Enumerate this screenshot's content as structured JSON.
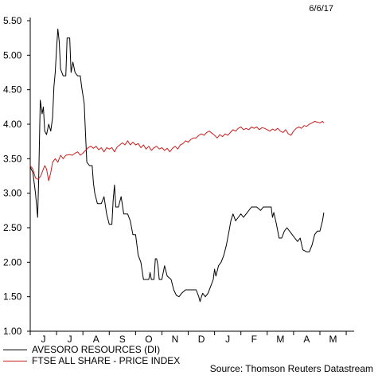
{
  "date_label": "6/6/17",
  "source": "Source: Thomson Reuters Datastream",
  "chart_data": {
    "type": "line",
    "title": "",
    "xlabel": "",
    "ylabel": "",
    "ylim": [
      1.0,
      5.5
    ],
    "yticks": [
      "1.00",
      "1.50",
      "2.00",
      "2.50",
      "3.00",
      "3.50",
      "4.00",
      "4.50",
      "5.00",
      "5.50"
    ],
    "xticks": [
      "J",
      "J",
      "A",
      "S",
      "O",
      "N",
      "D",
      "J",
      "F",
      "M",
      "A",
      "M"
    ],
    "xlim": [
      0,
      12.3
    ],
    "grid": false,
    "legend": "bottom-left",
    "series": [
      {
        "name": "AVESORO RESOURCES (DI)",
        "color": "#000000",
        "points": [
          [
            0.0,
            3.38
          ],
          [
            0.1,
            3.3
          ],
          [
            0.2,
            3.0
          ],
          [
            0.28,
            2.65
          ],
          [
            0.32,
            3.2
          ],
          [
            0.38,
            4.35
          ],
          [
            0.45,
            4.15
          ],
          [
            0.5,
            4.25
          ],
          [
            0.55,
            3.9
          ],
          [
            0.62,
            3.85
          ],
          [
            0.7,
            4.0
          ],
          [
            0.78,
            3.9
          ],
          [
            0.85,
            4.1
          ],
          [
            0.9,
            4.55
          ],
          [
            0.95,
            4.75
          ],
          [
            1.0,
            5.1
          ],
          [
            1.05,
            5.38
          ],
          [
            1.1,
            5.2
          ],
          [
            1.15,
            4.8
          ],
          [
            1.25,
            4.7
          ],
          [
            1.35,
            4.7
          ],
          [
            1.4,
            5.25
          ],
          [
            1.5,
            5.25
          ],
          [
            1.55,
            4.75
          ],
          [
            1.62,
            4.9
          ],
          [
            1.7,
            4.75
          ],
          [
            1.8,
            4.7
          ],
          [
            1.9,
            4.7
          ],
          [
            1.95,
            4.55
          ],
          [
            2.05,
            4.3
          ],
          [
            2.1,
            3.85
          ],
          [
            2.15,
            3.45
          ],
          [
            2.25,
            3.4
          ],
          [
            2.35,
            3.4
          ],
          [
            2.4,
            3.15
          ],
          [
            2.45,
            3.0
          ],
          [
            2.55,
            2.85
          ],
          [
            2.7,
            2.85
          ],
          [
            2.8,
            2.95
          ],
          [
            2.9,
            2.7
          ],
          [
            3.0,
            2.55
          ],
          [
            3.1,
            2.55
          ],
          [
            3.15,
            2.9
          ],
          [
            3.2,
            3.12
          ],
          [
            3.25,
            2.8
          ],
          [
            3.35,
            2.8
          ],
          [
            3.45,
            2.95
          ],
          [
            3.55,
            2.7
          ],
          [
            3.7,
            2.7
          ],
          [
            3.8,
            2.6
          ],
          [
            3.9,
            2.4
          ],
          [
            4.0,
            2.4
          ],
          [
            4.1,
            2.1
          ],
          [
            4.2,
            2.0
          ],
          [
            4.3,
            1.75
          ],
          [
            4.5,
            1.75
          ],
          [
            4.55,
            1.85
          ],
          [
            4.6,
            1.75
          ],
          [
            4.7,
            1.75
          ],
          [
            4.75,
            2.05
          ],
          [
            4.8,
            2.05
          ],
          [
            4.85,
            1.95
          ],
          [
            4.9,
            1.75
          ],
          [
            5.0,
            1.75
          ],
          [
            5.1,
            1.95
          ],
          [
            5.2,
            1.8
          ],
          [
            5.35,
            1.75
          ],
          [
            5.45,
            1.6
          ],
          [
            5.55,
            1.52
          ],
          [
            5.65,
            1.5
          ],
          [
            5.75,
            1.55
          ],
          [
            5.9,
            1.6
          ],
          [
            6.3,
            1.6
          ],
          [
            6.4,
            1.5
          ],
          [
            6.45,
            1.43
          ],
          [
            6.5,
            1.5
          ],
          [
            6.55,
            1.55
          ],
          [
            6.65,
            1.5
          ],
          [
            6.75,
            1.55
          ],
          [
            6.85,
            1.65
          ],
          [
            6.95,
            1.75
          ],
          [
            7.0,
            1.9
          ],
          [
            7.05,
            1.8
          ],
          [
            7.15,
            1.95
          ],
          [
            7.25,
            2.0
          ],
          [
            7.35,
            2.1
          ],
          [
            7.45,
            2.25
          ],
          [
            7.55,
            2.45
          ],
          [
            7.62,
            2.6
          ],
          [
            7.7,
            2.7
          ],
          [
            7.8,
            2.6
          ],
          [
            7.9,
            2.65
          ],
          [
            8.0,
            2.7
          ],
          [
            8.1,
            2.65
          ],
          [
            8.2,
            2.7
          ],
          [
            8.4,
            2.8
          ],
          [
            8.6,
            2.8
          ],
          [
            8.75,
            2.75
          ],
          [
            8.85,
            2.8
          ],
          [
            9.15,
            2.8
          ],
          [
            9.2,
            2.65
          ],
          [
            9.25,
            2.72
          ],
          [
            9.35,
            2.55
          ],
          [
            9.45,
            2.35
          ],
          [
            9.55,
            2.35
          ],
          [
            9.65,
            2.45
          ],
          [
            9.75,
            2.5
          ],
          [
            9.85,
            2.45
          ],
          [
            9.95,
            2.4
          ],
          [
            10.05,
            2.35
          ],
          [
            10.15,
            2.3
          ],
          [
            10.25,
            2.35
          ],
          [
            10.35,
            2.18
          ],
          [
            10.5,
            2.15
          ],
          [
            10.6,
            2.15
          ],
          [
            10.7,
            2.25
          ],
          [
            10.8,
            2.4
          ],
          [
            10.9,
            2.45
          ],
          [
            11.0,
            2.45
          ],
          [
            11.1,
            2.6
          ],
          [
            11.15,
            2.72
          ]
        ]
      },
      {
        "name": "FTSE ALL SHARE - PRICE INDEX",
        "color": "#cc1f1f",
        "points": [
          [
            0.0,
            3.4
          ],
          [
            0.1,
            3.35
          ],
          [
            0.2,
            3.22
          ],
          [
            0.3,
            3.2
          ],
          [
            0.4,
            3.25
          ],
          [
            0.5,
            3.35
          ],
          [
            0.55,
            3.4
          ],
          [
            0.62,
            3.35
          ],
          [
            0.7,
            3.18
          ],
          [
            0.78,
            3.3
          ],
          [
            0.85,
            3.45
          ],
          [
            0.95,
            3.5
          ],
          [
            1.05,
            3.45
          ],
          [
            1.15,
            3.55
          ],
          [
            1.25,
            3.5
          ],
          [
            1.35,
            3.55
          ],
          [
            1.5,
            3.56
          ],
          [
            1.6,
            3.55
          ],
          [
            1.7,
            3.58
          ],
          [
            1.8,
            3.6
          ],
          [
            1.9,
            3.55
          ],
          [
            2.0,
            3.58
          ],
          [
            2.1,
            3.62
          ],
          [
            2.2,
            3.66
          ],
          [
            2.3,
            3.68
          ],
          [
            2.4,
            3.65
          ],
          [
            2.5,
            3.68
          ],
          [
            2.6,
            3.63
          ],
          [
            2.7,
            3.66
          ],
          [
            2.8,
            3.6
          ],
          [
            2.9,
            3.66
          ],
          [
            3.0,
            3.64
          ],
          [
            3.1,
            3.66
          ],
          [
            3.2,
            3.6
          ],
          [
            3.3,
            3.67
          ],
          [
            3.4,
            3.7
          ],
          [
            3.5,
            3.73
          ],
          [
            3.6,
            3.7
          ],
          [
            3.7,
            3.76
          ],
          [
            3.8,
            3.7
          ],
          [
            3.9,
            3.74
          ],
          [
            4.0,
            3.7
          ],
          [
            4.1,
            3.72
          ],
          [
            4.2,
            3.66
          ],
          [
            4.3,
            3.7
          ],
          [
            4.4,
            3.64
          ],
          [
            4.5,
            3.68
          ],
          [
            4.6,
            3.62
          ],
          [
            4.7,
            3.66
          ],
          [
            4.8,
            3.68
          ],
          [
            4.9,
            3.64
          ],
          [
            5.0,
            3.66
          ],
          [
            5.1,
            3.62
          ],
          [
            5.2,
            3.65
          ],
          [
            5.3,
            3.6
          ],
          [
            5.4,
            3.65
          ],
          [
            5.5,
            3.68
          ],
          [
            5.6,
            3.64
          ],
          [
            5.7,
            3.7
          ],
          [
            5.8,
            3.72
          ],
          [
            5.9,
            3.76
          ],
          [
            6.0,
            3.74
          ],
          [
            6.1,
            3.78
          ],
          [
            6.2,
            3.8
          ],
          [
            6.3,
            3.8
          ],
          [
            6.4,
            3.84
          ],
          [
            6.5,
            3.86
          ],
          [
            6.6,
            3.84
          ],
          [
            6.7,
            3.88
          ],
          [
            6.8,
            3.9
          ],
          [
            6.9,
            3.87
          ],
          [
            7.0,
            3.84
          ],
          [
            7.1,
            3.8
          ],
          [
            7.2,
            3.85
          ],
          [
            7.3,
            3.82
          ],
          [
            7.4,
            3.86
          ],
          [
            7.5,
            3.84
          ],
          [
            7.6,
            3.88
          ],
          [
            7.7,
            3.92
          ],
          [
            7.8,
            3.9
          ],
          [
            7.9,
            3.94
          ],
          [
            8.0,
            3.96
          ],
          [
            8.1,
            3.92
          ],
          [
            8.2,
            3.94
          ],
          [
            8.3,
            3.92
          ],
          [
            8.4,
            3.96
          ],
          [
            8.5,
            3.94
          ],
          [
            8.6,
            3.96
          ],
          [
            8.7,
            3.92
          ],
          [
            8.8,
            3.95
          ],
          [
            8.9,
            3.94
          ],
          [
            9.0,
            3.92
          ],
          [
            9.1,
            3.9
          ],
          [
            9.2,
            3.93
          ],
          [
            9.3,
            3.91
          ],
          [
            9.4,
            3.94
          ],
          [
            9.5,
            3.9
          ],
          [
            9.6,
            3.88
          ],
          [
            9.7,
            3.92
          ],
          [
            9.8,
            3.86
          ],
          [
            9.9,
            3.84
          ],
          [
            10.0,
            3.9
          ],
          [
            10.1,
            3.94
          ],
          [
            10.2,
            3.96
          ],
          [
            10.3,
            3.94
          ],
          [
            10.4,
            3.98
          ],
          [
            10.5,
            3.97
          ],
          [
            10.6,
            4.0
          ],
          [
            10.7,
            4.02
          ],
          [
            10.8,
            4.04
          ],
          [
            10.9,
            4.03
          ],
          [
            11.0,
            4.02
          ],
          [
            11.1,
            4.04
          ],
          [
            11.15,
            4.02
          ]
        ]
      }
    ]
  }
}
